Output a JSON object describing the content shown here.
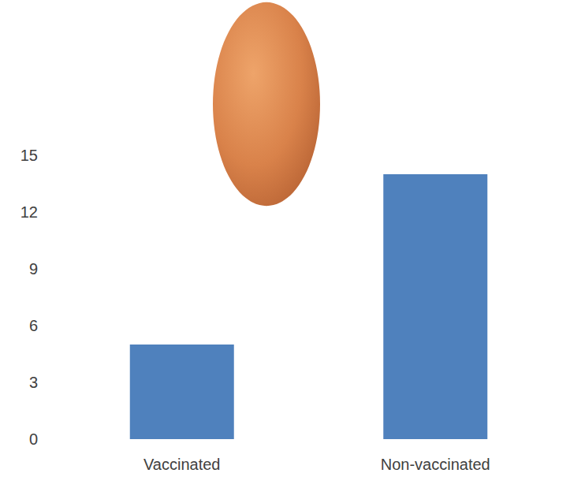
{
  "chart_data": {
    "type": "bar",
    "categories": [
      "Vaccinated",
      "Non-vaccinated"
    ],
    "values": [
      5,
      14
    ],
    "color": "#4f81bd",
    "ylim": [
      0,
      15
    ],
    "yticks": [
      0,
      3,
      6,
      9,
      12,
      15
    ],
    "grid": false
  }
}
